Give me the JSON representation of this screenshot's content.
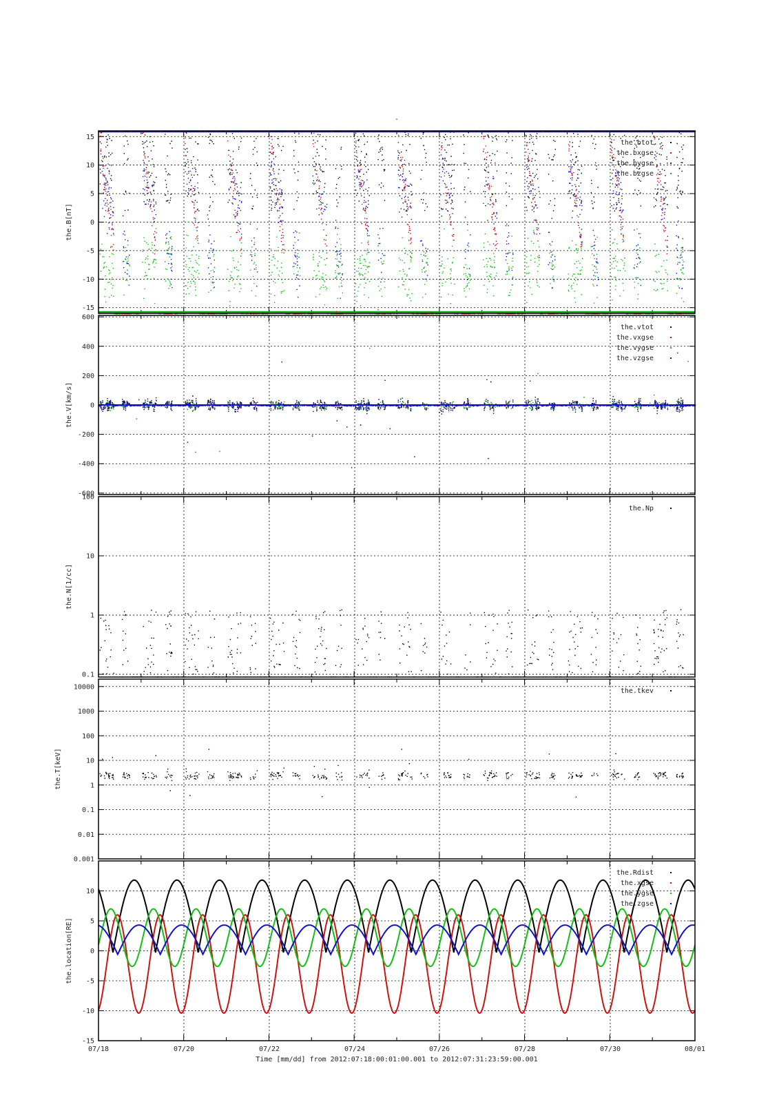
{
  "figure": {
    "title": "-",
    "xlabel": "Time [mm/dd]  from 2012:07:18:00:01:00.001  to  2012:07:31:23:59:00.001",
    "x_ticks": [
      "07/18",
      "07/20",
      "07/22",
      "07/24",
      "07/26",
      "07/28",
      "07/30",
      "08/01"
    ]
  },
  "chart_data": [
    {
      "type": "scatter",
      "ylabel": "the.B[nT]",
      "ylim": [
        -16,
        16
      ],
      "y_ticks": [
        "15",
        "10",
        "5",
        "0",
        "-5",
        "-10",
        "-15"
      ],
      "y_tick_values": [
        15,
        10,
        5,
        0,
        -5,
        -10,
        -15
      ],
      "legend_position": "top-right",
      "series": [
        {
          "name": "the.btot",
          "color": "#000000",
          "mean": 30,
          "amplitude": 14,
          "noise": 6,
          "clip": true
        },
        {
          "name": "the.bxgse",
          "color": "#d01010",
          "mean": 5,
          "amplitude": 20,
          "noise": 3,
          "clip": true
        },
        {
          "name": "the.bygse",
          "color": "#1010c8",
          "mean": 3,
          "amplitude": 10,
          "noise": 4,
          "clip": true
        },
        {
          "name": "the.bzgse",
          "color": "#10c010",
          "mean": -10,
          "amplitude": 6,
          "noise": 3,
          "clip": true
        }
      ]
    },
    {
      "type": "scatter",
      "ylabel": "the.V[km/s]",
      "ylim": [
        -610,
        610
      ],
      "y_ticks": [
        "600",
        "400",
        "200",
        "0",
        "-200",
        "-400",
        "-600"
      ],
      "y_tick_values": [
        600,
        400,
        200,
        0,
        -200,
        -400,
        -600
      ],
      "legend_position": "top-right",
      "series": [
        {
          "name": "the.vtot",
          "color": "#000000"
        },
        {
          "name": "the.vxgse",
          "color": "#d01010"
        },
        {
          "name": "the.vygse",
          "color": "#10c010"
        },
        {
          "name": "the.vzgse",
          "color": "#1010c8"
        }
      ]
    },
    {
      "type": "scatter",
      "ylabel": "the.N[1/cc]",
      "yscale": "log",
      "ylim": [
        0.09,
        100
      ],
      "y_ticks": [
        "100",
        "10",
        "1",
        "0.1"
      ],
      "y_tick_values": [
        100,
        10,
        1,
        0.1
      ],
      "legend_position": "top-right",
      "series": [
        {
          "name": "the.Np",
          "color": "#000000"
        }
      ]
    },
    {
      "type": "scatter",
      "ylabel": "the.T[keV]",
      "yscale": "log",
      "ylim": [
        0.001,
        20000
      ],
      "y_ticks": [
        "10000",
        "1000",
        "100",
        "10",
        "1",
        "0.1",
        "0.01",
        "0.001"
      ],
      "y_tick_values": [
        10000,
        1000,
        100,
        10,
        1,
        0.1,
        0.01,
        0.001
      ],
      "legend_position": "top-right",
      "series": [
        {
          "name": "the.tkev",
          "color": "#000000"
        }
      ]
    },
    {
      "type": "line",
      "ylabel": "the.location[RE]",
      "ylim": [
        -15,
        15
      ],
      "y_ticks": [
        "10",
        "5",
        "0",
        "-5",
        "-10",
        "-15"
      ],
      "y_tick_values": [
        10,
        5,
        0,
        -5,
        -10,
        -15
      ],
      "legend_position": "top-right",
      "orbit_period_days": 1.0,
      "series": [
        {
          "name": "the.Rdist",
          "color": "#000000",
          "min": -0.3,
          "max": 11.8
        },
        {
          "name": "the.xgse",
          "color": "#d01010",
          "min": -10.4,
          "max": 6.0
        },
        {
          "name": "the.ygse",
          "color": "#10c010",
          "min": -2.6,
          "max": 7.0
        },
        {
          "name": "the.zgse",
          "color": "#1010c8",
          "min": -0.6,
          "max": 4.3
        }
      ]
    }
  ]
}
